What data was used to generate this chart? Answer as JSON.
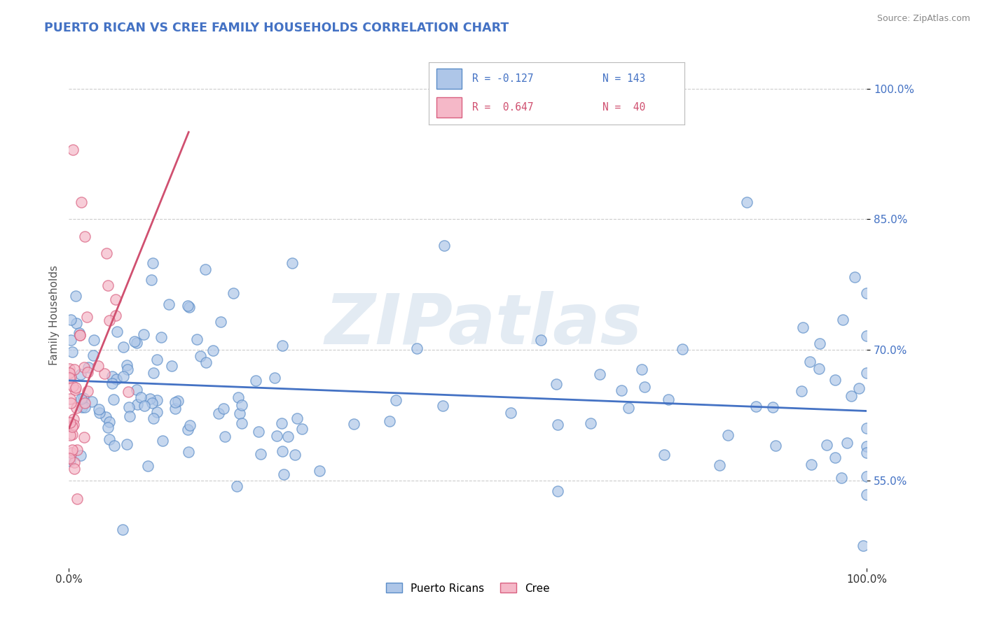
{
  "title": "PUERTO RICAN VS CREE FAMILY HOUSEHOLDS CORRELATION CHART",
  "source_text": "Source: ZipAtlas.com",
  "ylabel": "Family Households",
  "xlim": [
    0.0,
    100.0
  ],
  "ylim": [
    45.0,
    103.0
  ],
  "xtick_positions": [
    0,
    100
  ],
  "xtick_labels": [
    "0.0%",
    "100.0%"
  ],
  "ytick_values": [
    55.0,
    70.0,
    85.0,
    100.0
  ],
  "ytick_labels": [
    "55.0%",
    "70.0%",
    "85.0%",
    "100.0%"
  ],
  "legend_r1": "R = -0.127",
  "legend_n1": "N = 143",
  "legend_r2": "R =  0.647",
  "legend_n2": "N =  40",
  "color_pr_fill": "#aec6e8",
  "color_pr_edge": "#5b8dc8",
  "color_pr_line": "#4472c4",
  "color_cree_fill": "#f5b8c8",
  "color_cree_edge": "#d96080",
  "color_cree_line": "#d05070",
  "color_pr_text": "#4472c4",
  "color_cree_text": "#d05070",
  "watermark": "ZIPatlas",
  "title_color": "#4472c4",
  "background_color": "#ffffff",
  "grid_color": "#cccccc",
  "pr_trend_x0": 0,
  "pr_trend_x1": 100,
  "pr_trend_y0": 66.5,
  "pr_trend_y1": 63.0,
  "cree_trend_x0": 0,
  "cree_trend_x1": 15,
  "cree_trend_y0": 61.0,
  "cree_trend_y1": 95.0
}
